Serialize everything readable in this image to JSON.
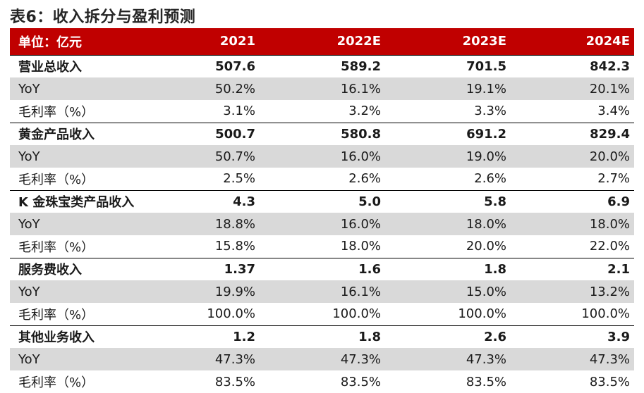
{
  "title": "表6：收入拆分与盈利预测",
  "table": {
    "header": {
      "label": "单位：亿元",
      "years": [
        "2021",
        "2022E",
        "2023E",
        "2024E"
      ]
    },
    "rows": [
      {
        "label": "营业总收入",
        "values": [
          "507.6",
          "589.2",
          "701.5",
          "842.3"
        ]
      },
      {
        "label": "YoY",
        "values": [
          "50.2%",
          "16.1%",
          "19.1%",
          "20.1%"
        ]
      },
      {
        "label": "毛利率（%）",
        "values": [
          "3.1%",
          "3.2%",
          "3.3%",
          "3.4%"
        ]
      },
      {
        "label": "黄金产品收入",
        "values": [
          "500.7",
          "580.8",
          "691.2",
          "829.4"
        ]
      },
      {
        "label": "YoY",
        "values": [
          "50.7%",
          "16.0%",
          "19.0%",
          "20.0%"
        ]
      },
      {
        "label": "毛利率（%）",
        "values": [
          "2.5%",
          "2.6%",
          "2.6%",
          "2.7%"
        ]
      },
      {
        "label": "K 金珠宝类产品收入",
        "values": [
          "4.3",
          "5.0",
          "5.8",
          "6.9"
        ]
      },
      {
        "label": "YoY",
        "values": [
          "18.8%",
          "16.0%",
          "18.0%",
          "18.0%"
        ]
      },
      {
        "label": "毛利率（%）",
        "values": [
          "15.8%",
          "18.0%",
          "20.0%",
          "22.0%"
        ]
      },
      {
        "label": "服务费收入",
        "values": [
          "1.37",
          "1.6",
          "1.8",
          "2.1"
        ]
      },
      {
        "label": "YoY",
        "values": [
          "19.9%",
          "16.1%",
          "15.0%",
          "13.2%"
        ]
      },
      {
        "label": "毛利率（%）",
        "values": [
          "100.0%",
          "100.0%",
          "100.0%",
          "100.0%"
        ]
      },
      {
        "label": "其他业务收入",
        "values": [
          "1.2",
          "1.8",
          "2.6",
          "3.9"
        ]
      },
      {
        "label": "YoY",
        "values": [
          "47.3%",
          "47.3%",
          "47.3%",
          "47.3%"
        ]
      },
      {
        "label": "毛利率（%）",
        "values": [
          "83.5%",
          "83.5%",
          "83.5%",
          "83.5%"
        ]
      }
    ]
  }
}
